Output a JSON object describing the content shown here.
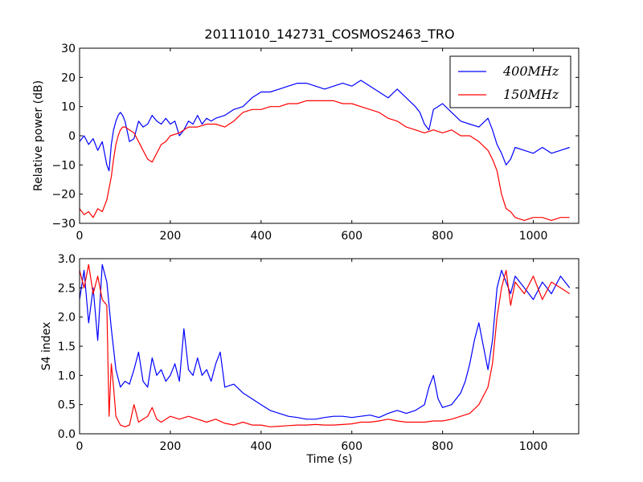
{
  "title": "20111010_142731_COSMOS2463_TRO",
  "chart_data": [
    {
      "type": "line",
      "ylabel": "Relative power (dB)",
      "xlabel": "",
      "xlim": [
        0,
        1100
      ],
      "ylim": [
        -30,
        30
      ],
      "xticks": [
        0,
        200,
        400,
        600,
        800,
        1000
      ],
      "yticks": [
        -30,
        -20,
        -10,
        0,
        10,
        20,
        30
      ],
      "grid": false,
      "legend": "top-right",
      "series": [
        {
          "name": "400MHz",
          "color": "#0000ff",
          "x": [
            0,
            10,
            20,
            30,
            40,
            50,
            55,
            60,
            65,
            70,
            75,
            80,
            85,
            90,
            95,
            100,
            110,
            120,
            130,
            140,
            150,
            160,
            170,
            180,
            190,
            200,
            210,
            220,
            230,
            240,
            250,
            260,
            270,
            280,
            290,
            300,
            320,
            340,
            360,
            380,
            400,
            420,
            440,
            460,
            480,
            500,
            520,
            540,
            560,
            580,
            600,
            620,
            640,
            660,
            680,
            700,
            720,
            740,
            750,
            760,
            770,
            780,
            790,
            800,
            820,
            840,
            860,
            880,
            900,
            910,
            920,
            930,
            940,
            950,
            960,
            980,
            1000,
            1020,
            1040,
            1060,
            1080
          ],
          "values": [
            -2,
            0,
            -3,
            -1,
            -5,
            -2,
            -6,
            -10,
            -12,
            -3,
            2,
            5,
            7,
            8,
            7,
            5,
            -2,
            -1,
            5,
            3,
            4,
            7,
            5,
            4,
            6,
            4,
            5,
            0,
            2,
            5,
            4,
            7,
            4,
            6,
            5,
            6,
            7,
            9,
            10,
            13,
            15,
            15,
            16,
            17,
            18,
            18,
            17,
            16,
            17,
            18,
            17,
            19,
            17,
            15,
            13,
            16,
            13,
            10,
            8,
            4,
            2,
            9,
            10,
            11,
            8,
            5,
            4,
            3,
            6,
            2,
            -3,
            -6,
            -10,
            -8,
            -4,
            -5,
            -6,
            -4,
            -6,
            -5,
            -4
          ]
        },
        {
          "name": "150MHz",
          "color": "#ff0000",
          "x": [
            0,
            10,
            20,
            30,
            40,
            50,
            55,
            60,
            65,
            70,
            75,
            80,
            85,
            90,
            95,
            100,
            110,
            120,
            130,
            140,
            150,
            160,
            170,
            180,
            190,
            200,
            220,
            240,
            260,
            280,
            300,
            320,
            340,
            360,
            380,
            400,
            420,
            440,
            460,
            480,
            500,
            520,
            540,
            560,
            580,
            600,
            620,
            640,
            660,
            680,
            700,
            720,
            740,
            760,
            780,
            800,
            820,
            840,
            860,
            880,
            900,
            910,
            920,
            930,
            940,
            950,
            960,
            980,
            1000,
            1020,
            1040,
            1060,
            1080
          ],
          "values": [
            -25,
            -27,
            -26,
            -28,
            -25,
            -26,
            -24,
            -22,
            -18,
            -14,
            -8,
            -3,
            0,
            2,
            3,
            3,
            2,
            1,
            -2,
            -5,
            -8,
            -9,
            -6,
            -3,
            -2,
            0,
            1,
            3,
            3,
            4,
            4,
            3,
            5,
            8,
            9,
            9,
            10,
            10,
            11,
            11,
            12,
            12,
            12,
            12,
            11,
            11,
            10,
            9,
            8,
            6,
            5,
            3,
            2,
            1,
            2,
            1,
            2,
            0,
            0,
            -2,
            -5,
            -8,
            -12,
            -20,
            -25,
            -26,
            -28,
            -29,
            -28,
            -28,
            -29,
            -28,
            -28
          ]
        }
      ]
    },
    {
      "type": "line",
      "ylabel": "S4 index",
      "xlabel": "Time (s)",
      "xlim": [
        0,
        1100
      ],
      "ylim": [
        0.0,
        3.0
      ],
      "xticks": [
        0,
        200,
        400,
        600,
        800,
        1000
      ],
      "yticks": [
        0.0,
        0.5,
        1.0,
        1.5,
        2.0,
        2.5,
        3.0
      ],
      "grid": false,
      "series": [
        {
          "name": "400MHz",
          "color": "#0000ff",
          "x": [
            0,
            10,
            20,
            30,
            40,
            50,
            60,
            70,
            80,
            90,
            100,
            110,
            120,
            130,
            140,
            150,
            160,
            170,
            180,
            190,
            200,
            210,
            220,
            230,
            240,
            250,
            260,
            270,
            280,
            290,
            300,
            310,
            320,
            340,
            360,
            380,
            400,
            420,
            440,
            460,
            480,
            500,
            520,
            540,
            560,
            580,
            600,
            620,
            640,
            660,
            680,
            700,
            720,
            740,
            760,
            770,
            780,
            790,
            800,
            820,
            840,
            850,
            860,
            870,
            880,
            890,
            900,
            910,
            920,
            930,
            940,
            950,
            960,
            980,
            1000,
            1020,
            1040,
            1060,
            1080
          ],
          "values": [
            2.3,
            2.8,
            1.9,
            2.5,
            1.6,
            2.9,
            2.6,
            1.8,
            1.1,
            0.8,
            0.9,
            0.85,
            1.1,
            1.4,
            0.9,
            0.8,
            1.3,
            1.0,
            1.1,
            0.9,
            1.0,
            1.2,
            0.9,
            1.8,
            1.1,
            1.0,
            1.3,
            1.0,
            1.1,
            0.9,
            1.2,
            1.4,
            0.8,
            0.85,
            0.7,
            0.6,
            0.5,
            0.4,
            0.35,
            0.3,
            0.28,
            0.25,
            0.25,
            0.28,
            0.3,
            0.3,
            0.28,
            0.3,
            0.32,
            0.28,
            0.35,
            0.4,
            0.35,
            0.4,
            0.5,
            0.8,
            1.0,
            0.6,
            0.45,
            0.5,
            0.7,
            0.9,
            1.2,
            1.6,
            1.9,
            1.5,
            1.1,
            1.6,
            2.5,
            2.8,
            2.6,
            2.4,
            2.7,
            2.5,
            2.3,
            2.6,
            2.4,
            2.7,
            2.5
          ]
        },
        {
          "name": "150MHz",
          "color": "#ff0000",
          "x": [
            0,
            10,
            20,
            30,
            40,
            50,
            60,
            65,
            70,
            75,
            80,
            90,
            100,
            110,
            120,
            130,
            140,
            150,
            160,
            170,
            180,
            200,
            220,
            240,
            260,
            280,
            300,
            320,
            340,
            360,
            380,
            400,
            420,
            440,
            460,
            480,
            500,
            520,
            540,
            560,
            580,
            600,
            620,
            640,
            660,
            680,
            700,
            720,
            740,
            760,
            780,
            800,
            820,
            840,
            860,
            880,
            900,
            910,
            920,
            930,
            940,
            950,
            960,
            980,
            1000,
            1020,
            1040,
            1060,
            1080
          ],
          "values": [
            2.8,
            2.5,
            2.9,
            2.4,
            2.7,
            2.3,
            2.2,
            0.3,
            1.2,
            0.8,
            0.3,
            0.15,
            0.12,
            0.15,
            0.5,
            0.2,
            0.25,
            0.3,
            0.45,
            0.25,
            0.2,
            0.3,
            0.25,
            0.3,
            0.25,
            0.2,
            0.25,
            0.18,
            0.15,
            0.2,
            0.15,
            0.15,
            0.12,
            0.13,
            0.14,
            0.15,
            0.15,
            0.16,
            0.15,
            0.15,
            0.16,
            0.17,
            0.2,
            0.2,
            0.22,
            0.25,
            0.22,
            0.2,
            0.2,
            0.2,
            0.22,
            0.22,
            0.25,
            0.3,
            0.35,
            0.5,
            0.8,
            1.2,
            2.0,
            2.5,
            2.8,
            2.2,
            2.6,
            2.4,
            2.7,
            2.3,
            2.6,
            2.5,
            2.4
          ]
        }
      ]
    }
  ]
}
